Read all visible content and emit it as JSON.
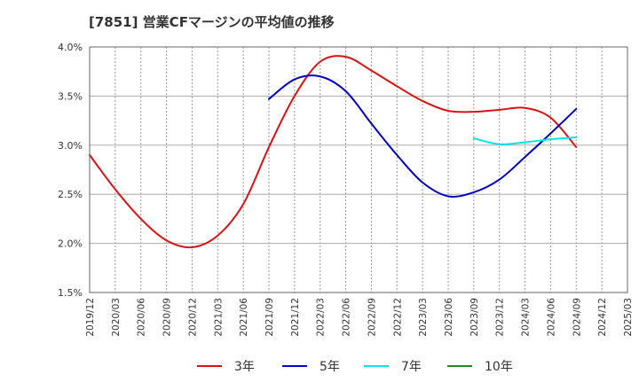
{
  "chart_data": {
    "type": "line",
    "title": "[7851]  営業CFマージンの平均値の推移",
    "xlabel": "",
    "ylabel": "",
    "x_ticks": [
      "2019/12",
      "2020/03",
      "2020/06",
      "2020/09",
      "2020/12",
      "2021/03",
      "2021/06",
      "2021/09",
      "2021/12",
      "2022/03",
      "2022/06",
      "2022/09",
      "2022/12",
      "2023/03",
      "2023/06",
      "2023/09",
      "2023/12",
      "2024/03",
      "2024/06",
      "2024/09",
      "2024/12",
      "2025/03"
    ],
    "y_ticks": [
      "1.5%",
      "2.0%",
      "2.5%",
      "3.0%",
      "3.5%",
      "4.0%"
    ],
    "ylim": [
      1.5,
      4.0
    ],
    "grid": true,
    "legend_position": "bottom",
    "series": [
      {
        "name": "3年",
        "color": "#dd1111",
        "x": [
          "2019/12",
          "2020/03",
          "2020/06",
          "2020/09",
          "2020/12",
          "2021/03",
          "2021/06",
          "2021/09",
          "2021/12",
          "2022/03",
          "2022/06",
          "2022/09",
          "2022/12",
          "2023/03",
          "2023/06",
          "2023/09",
          "2023/12",
          "2024/03",
          "2024/06",
          "2024/09"
        ],
        "values": [
          2.9,
          2.55,
          2.25,
          2.03,
          1.96,
          2.08,
          2.4,
          2.98,
          3.5,
          3.85,
          3.9,
          3.76,
          3.6,
          3.45,
          3.35,
          3.34,
          3.36,
          3.38,
          3.28,
          2.98
        ]
      },
      {
        "name": "5年",
        "color": "#0000cc",
        "x": [
          "2021/09",
          "2021/12",
          "2022/03",
          "2022/06",
          "2022/09",
          "2022/12",
          "2023/03",
          "2023/06",
          "2023/09",
          "2023/12",
          "2024/03",
          "2024/06",
          "2024/09"
        ],
        "values": [
          3.47,
          3.67,
          3.7,
          3.55,
          3.22,
          2.9,
          2.62,
          2.48,
          2.52,
          2.65,
          2.88,
          3.12,
          3.37
        ]
      },
      {
        "name": "7年",
        "color": "#00e5ee",
        "x": [
          "2023/09",
          "2023/12",
          "2024/03",
          "2024/06",
          "2024/09"
        ],
        "values": [
          3.07,
          3.01,
          3.03,
          3.06,
          3.08
        ]
      },
      {
        "name": "10年",
        "color": "#228b22",
        "x": [],
        "values": []
      }
    ]
  }
}
